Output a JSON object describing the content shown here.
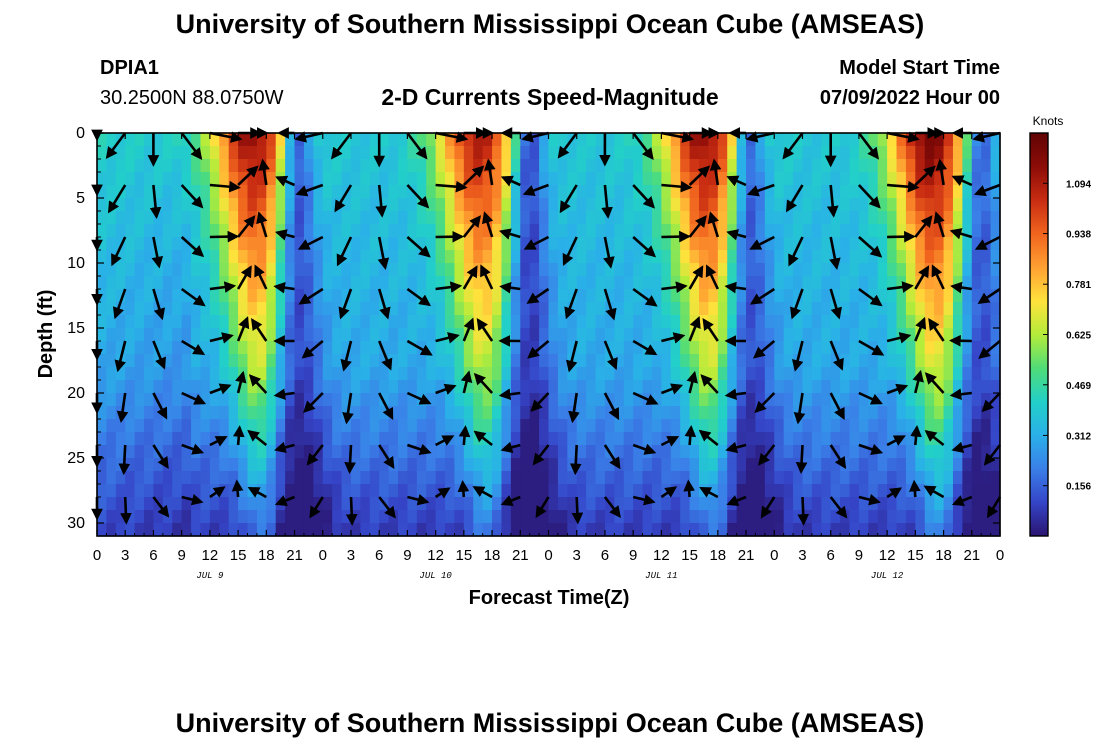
{
  "header": {
    "title": "University of Southern Mississippi Ocean Cube (AMSEAS)",
    "station_id": "DPIA1",
    "station_coords": "30.2500N  88.0750W",
    "subtitle": "2-D Currents Speed-Magnitude",
    "model_start_label": "Model Start Time",
    "model_start_value": "07/09/2022 Hour 00"
  },
  "footer": {
    "title": "University of Southern Mississippi Ocean Cube (AMSEAS)"
  },
  "chart_data": {
    "type": "heatmap",
    "title": "2-D Currents Speed-Magnitude",
    "xlabel": "Forecast Time(Z)",
    "ylabel": "Depth (ft)",
    "xlim": [
      0,
      96
    ],
    "ylim": [
      31,
      0
    ],
    "x_ticks": [
      0,
      3,
      6,
      9,
      12,
      15,
      18,
      21,
      24,
      27,
      30,
      33,
      36,
      39,
      42,
      45,
      48,
      51,
      54,
      57,
      60,
      63,
      66,
      69,
      72,
      75,
      78,
      81,
      84,
      87,
      90,
      93,
      96
    ],
    "x_tick_labels": [
      "0",
      "3",
      "6",
      "9",
      "12",
      "15",
      "18",
      "21",
      "0",
      "3",
      "6",
      "9",
      "12",
      "15",
      "18",
      "21",
      "0",
      "3",
      "6",
      "9",
      "12",
      "15",
      "18",
      "21",
      "0",
      "3",
      "6",
      "9",
      "12",
      "15",
      "18",
      "21",
      "0"
    ],
    "y_ticks": [
      0,
      5,
      10,
      15,
      20,
      25,
      30
    ],
    "y_tick_labels": [
      "0",
      "5",
      "10",
      "15",
      "20",
      "25",
      "30"
    ],
    "day_labels": [
      {
        "hour": 12,
        "label": "JUL 9"
      },
      {
        "hour": 36,
        "label": "JUL 10"
      },
      {
        "hour": 60,
        "label": "JUL 11"
      },
      {
        "hour": 84,
        "label": "JUL 12"
      }
    ],
    "colorbar": {
      "unit": "Knots",
      "range": [
        0,
        1.25
      ],
      "ticks": [
        0.156,
        0.312,
        0.469,
        0.625,
        0.781,
        0.938,
        1.094
      ],
      "tick_labels": [
        "0.156",
        "0.312",
        "0.469",
        "0.625",
        "0.781",
        "0.938",
        "1.094"
      ],
      "colors": [
        "#2a1470",
        "#3545c8",
        "#3a7fe8",
        "#2ab0e8",
        "#22d0c8",
        "#50dc78",
        "#b4ec3a",
        "#ffe23c",
        "#ffa032",
        "#f0641e",
        "#c82c12",
        "#8c0c08",
        "#600404"
      ]
    },
    "vector_depths": [
      0,
      4,
      8,
      12,
      16,
      20,
      24,
      28
    ],
    "vector_hours": [
      0,
      3,
      6,
      9,
      12,
      15,
      18,
      21,
      24,
      27,
      30,
      33,
      36,
      39,
      42,
      45,
      48,
      51,
      54,
      57,
      60,
      63,
      66,
      69,
      72,
      75,
      78,
      81,
      84,
      87,
      90,
      93,
      96
    ],
    "speed_peaks": [
      {
        "hour": 16.5,
        "speed": 1.15
      },
      {
        "hour": 40.5,
        "speed": 1.1
      },
      {
        "hour": 64.5,
        "speed": 1.15
      },
      {
        "hour": 88.5,
        "speed": 1.2
      }
    ],
    "speed_valleys": [
      {
        "hour": 21.5,
        "speed": 0.08
      },
      {
        "hour": 46.0,
        "speed": 0.05
      },
      {
        "hour": 69.5,
        "speed": 0.1
      },
      {
        "hour": 94.0,
        "speed": 0.1
      }
    ]
  }
}
